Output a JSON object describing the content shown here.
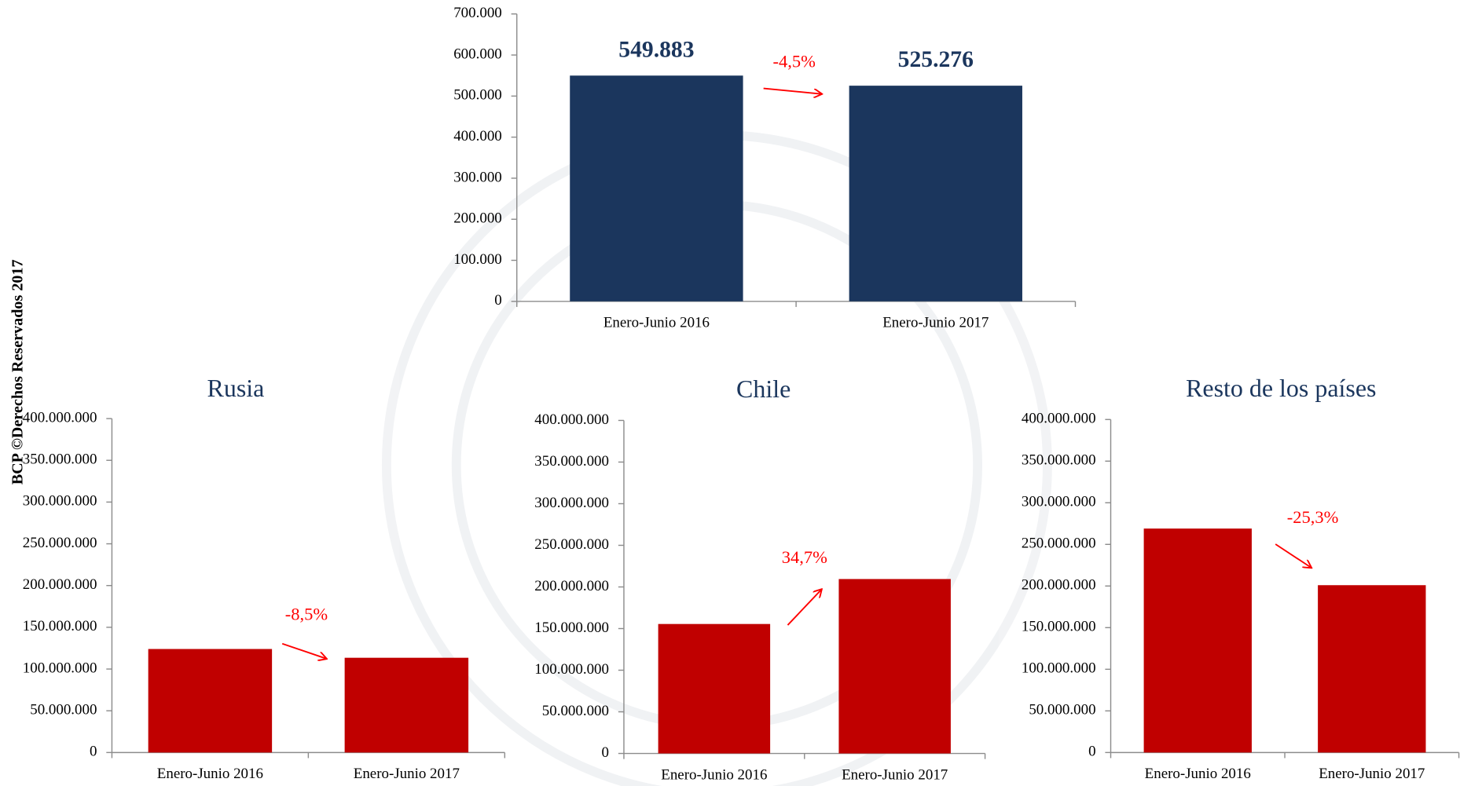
{
  "side_note": "BCP ©Derechos Reservados 2017",
  "chart_data": [
    {
      "type": "bar",
      "categories": [
        "Enero-Junio 2016",
        "Enero-Junio 2017"
      ],
      "values": [
        549883,
        525276
      ],
      "value_labels": [
        "549.883",
        "525.276"
      ],
      "color": "#1b365d",
      "ylim": [
        0,
        700000
      ],
      "yticks": [
        {
          "value": 0,
          "label": "0"
        },
        {
          "value": 100000,
          "label": "100.000"
        },
        {
          "value": 200000,
          "label": "200.000"
        },
        {
          "value": 300000,
          "label": "300.000"
        },
        {
          "value": 400000,
          "label": "400.000"
        },
        {
          "value": 500000,
          "label": "500.000"
        },
        {
          "value": 600000,
          "label": "600.000"
        },
        {
          "value": 700000,
          "label": "700.000"
        }
      ],
      "annotation": "-4,5%"
    },
    {
      "type": "bar",
      "title": "Rusia",
      "categories": [
        "Enero-Junio 2016",
        "Enero-Junio 2017"
      ],
      "values": [
        124000000,
        113500000
      ],
      "color": "#c00000",
      "ylim": [
        0,
        400000000
      ],
      "yticks": [
        {
          "value": 0,
          "label": "0"
        },
        {
          "value": 50000000,
          "label": "50.000.000"
        },
        {
          "value": 100000000,
          "label": "100.000.000"
        },
        {
          "value": 150000000,
          "label": "150.000.000"
        },
        {
          "value": 200000000,
          "label": "200.000.000"
        },
        {
          "value": 250000000,
          "label": "250.000.000"
        },
        {
          "value": 300000000,
          "label": "300.000.000"
        },
        {
          "value": 350000000,
          "label": "350.000.000"
        },
        {
          "value": 400000000,
          "label": "400.000.000"
        }
      ],
      "annotation": "-8,5%"
    },
    {
      "type": "bar",
      "title": "Chile",
      "categories": [
        "Enero-Junio 2016",
        "Enero-Junio 2017"
      ],
      "values": [
        155500000,
        209500000
      ],
      "color": "#c00000",
      "ylim": [
        0,
        400000000
      ],
      "yticks": [
        {
          "value": 0,
          "label": "0"
        },
        {
          "value": 50000000,
          "label": "50.000.000"
        },
        {
          "value": 100000000,
          "label": "100.000.000"
        },
        {
          "value": 150000000,
          "label": "150.000.000"
        },
        {
          "value": 200000000,
          "label": "200.000.000"
        },
        {
          "value": 250000000,
          "label": "250.000.000"
        },
        {
          "value": 300000000,
          "label": "300.000.000"
        },
        {
          "value": 350000000,
          "label": "350.000.000"
        },
        {
          "value": 400000000,
          "label": "400.000.000"
        }
      ],
      "annotation": "34,7%"
    },
    {
      "type": "bar",
      "title": "Resto de los países",
      "categories": [
        "Enero-Junio 2016",
        "Enero-Junio 2017"
      ],
      "values": [
        269000000,
        201000000
      ],
      "color": "#c00000",
      "ylim": [
        0,
        400000000
      ],
      "yticks": [
        {
          "value": 0,
          "label": "0"
        },
        {
          "value": 50000000,
          "label": "50.000.000"
        },
        {
          "value": 100000000,
          "label": "100.000.000"
        },
        {
          "value": 150000000,
          "label": "150.000.000"
        },
        {
          "value": 200000000,
          "label": "200.000.000"
        },
        {
          "value": 250000000,
          "label": "250.000.000"
        },
        {
          "value": 300000000,
          "label": "300.000.000"
        },
        {
          "value": 350000000,
          "label": "350.000.000"
        },
        {
          "value": 400000000,
          "label": "400.000.000"
        }
      ],
      "annotation": "-25,3%"
    }
  ]
}
